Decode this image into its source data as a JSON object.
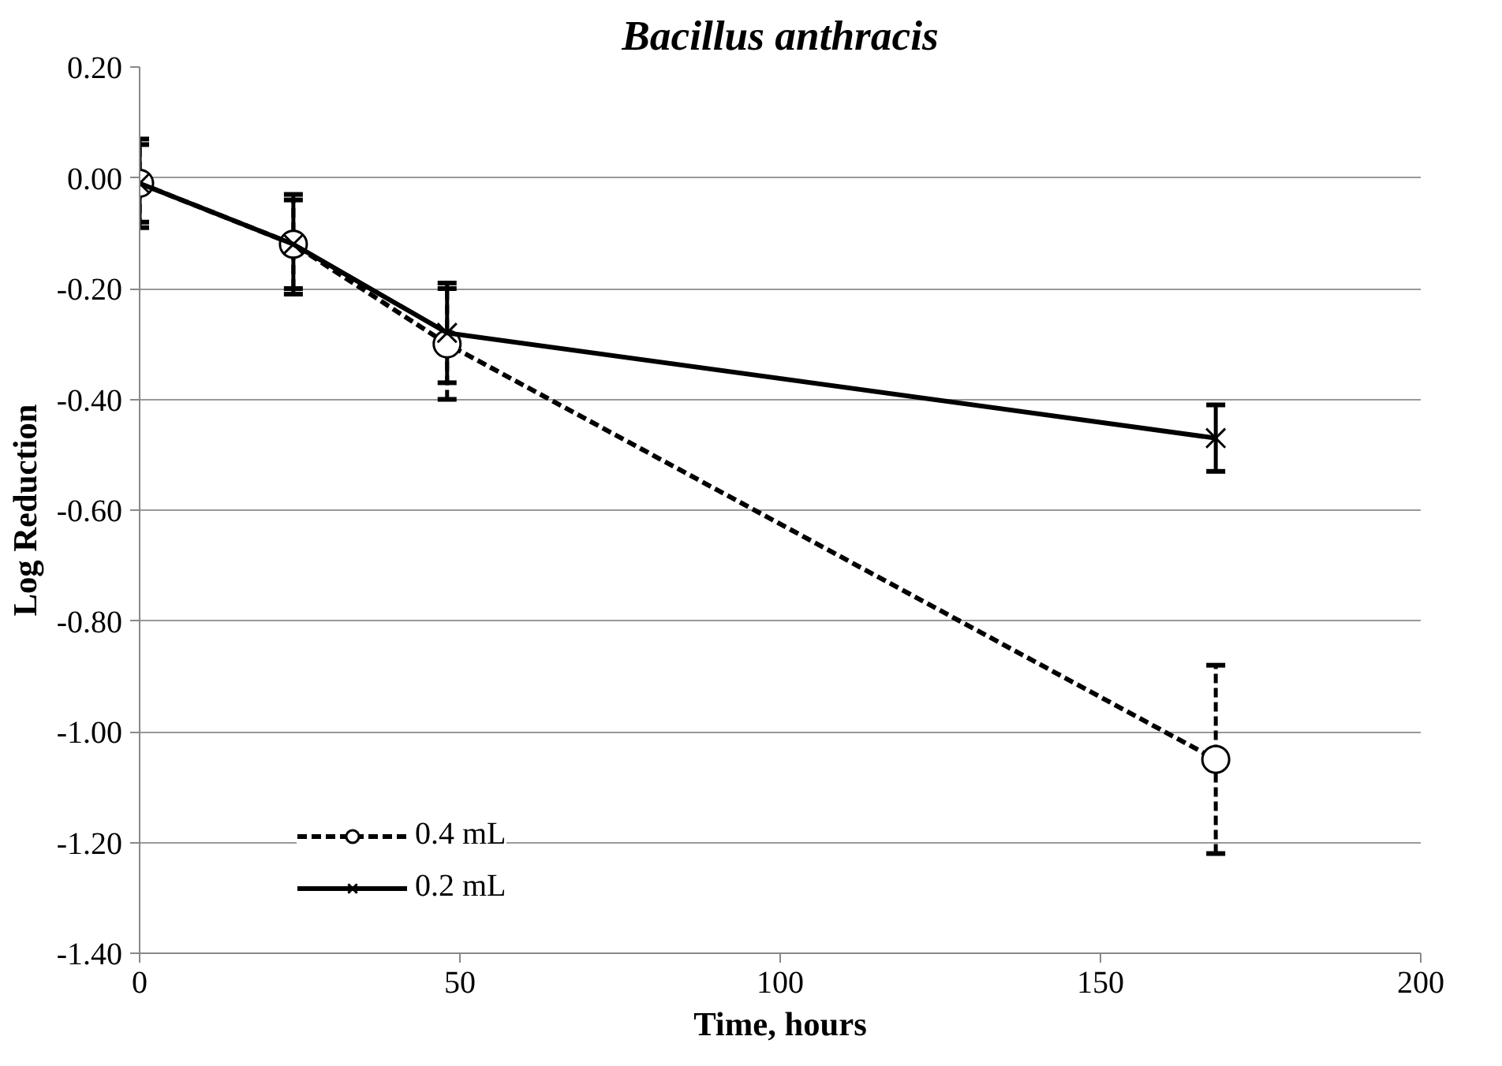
{
  "chart_data": {
    "type": "line",
    "title": "Bacillus anthracis",
    "xlabel": "Time, hours",
    "ylabel": "Log Reduction",
    "x": [
      0,
      24,
      48,
      168
    ],
    "series": [
      {
        "name": "0.4 mL",
        "color": "#000000",
        "values": [
          -0.01,
          -0.12,
          -0.3,
          -1.05
        ],
        "errors": [
          0.08,
          0.08,
          0.1,
          0.17
        ],
        "marker": "circle",
        "line_style": "dashed"
      },
      {
        "name": "0.2 mL",
        "color": "#000000",
        "values": [
          -0.01,
          -0.12,
          -0.28,
          -0.47
        ],
        "errors": [
          0.07,
          0.09,
          0.09,
          0.06
        ],
        "marker": "cross",
        "line_style": "solid"
      }
    ],
    "xlim": [
      0,
      200
    ],
    "xticks": [
      0,
      50,
      100,
      150,
      200
    ],
    "ylim": [
      -1.4,
      0.2
    ],
    "yticks": [
      {
        "value": -1.4,
        "label": "-1.40"
      },
      {
        "value": -1.2,
        "label": "-1.20"
      },
      {
        "value": -1.0,
        "label": "-1.00"
      },
      {
        "value": -0.8,
        "label": "-0.80"
      },
      {
        "value": -0.6,
        "label": "-0.60"
      },
      {
        "value": -0.4,
        "label": "-0.40"
      },
      {
        "value": -0.2,
        "label": "-0.20"
      },
      {
        "value": 0,
        "label": "0.00"
      },
      {
        "value": 0.2,
        "label": "0.20"
      }
    ],
    "grid": "y",
    "legend": "bottom left"
  }
}
